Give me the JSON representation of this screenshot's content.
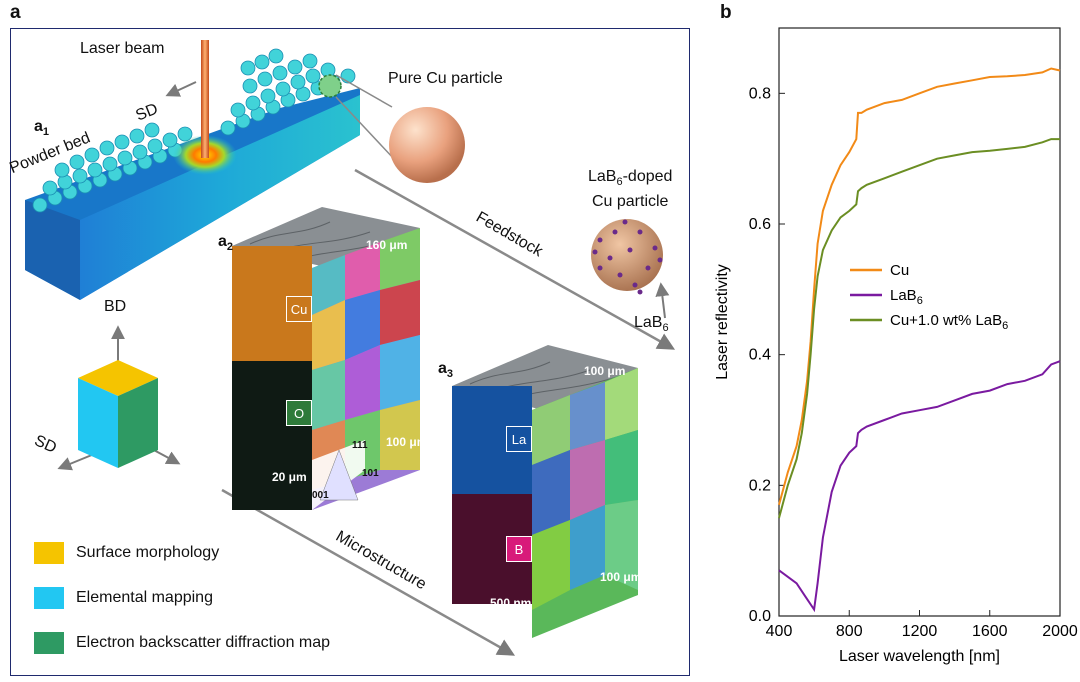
{
  "panel_a": {
    "letter": "a",
    "sub_a1": "a",
    "sub_a1_idx": "1",
    "sub_a2": "a",
    "sub_a2_idx": "2",
    "sub_a3": "a",
    "sub_a3_idx": "3",
    "laser_beam": "Laser beam",
    "sd_top": "SD",
    "powder_bed": "Powder bed",
    "pure_cu": "Pure Cu particle",
    "lab6_doped_1": "LaB",
    "lab6_doped_sub": "6",
    "lab6_doped_2": "-doped",
    "lab6_doped_3": "Cu particle",
    "lab6_label": "LaB",
    "lab6_label_sub": "6",
    "feedstock": "Feedstock",
    "microstructure": "Microstructure",
    "bd": "BD",
    "sd_axis": "SD",
    "tile_cu": "Cu",
    "tile_o": "O",
    "tile_la": "La",
    "tile_b": "B",
    "scale_160um": "160 μm",
    "scale_20um": "20 μm",
    "scale_100um_a2": "100 μm",
    "scale_100um_top": "100 μm",
    "scale_500nm": "500 nm",
    "scale_100um_a3": "100 μm",
    "ipf_111": "111",
    "ipf_001": "001",
    "ipf_101": "101",
    "legend": [
      {
        "label": "Surface morphology",
        "color": "#f5c400"
      },
      {
        "label": "Elemental mapping",
        "color": "#22c7f2"
      },
      {
        "label": "Electron backscatter diffraction map",
        "color": "#2e9a63"
      }
    ]
  },
  "chart_data": {
    "type": "line",
    "panel_letter": "b",
    "xlabel": "Laser wavelength [nm]",
    "ylabel": "Laser reflectivity",
    "xlim": [
      400,
      2000
    ],
    "ylim": [
      0.0,
      0.9
    ],
    "xticks": [
      400,
      800,
      1200,
      1600,
      2000
    ],
    "yticks": [
      0.0,
      0.2,
      0.4,
      0.6,
      0.8
    ],
    "ytick_labels": [
      "0.0",
      "0.2",
      "0.4",
      "0.6",
      "0.8"
    ],
    "legend_position": "middle-right",
    "series": [
      {
        "name": "Cu",
        "color": "#f28a17",
        "x": [
          400,
          450,
          500,
          530,
          560,
          580,
          600,
          620,
          650,
          700,
          750,
          800,
          840,
          850,
          870,
          900,
          1000,
          1100,
          1200,
          1300,
          1400,
          1500,
          1600,
          1700,
          1800,
          1900,
          1950,
          2000
        ],
        "y": [
          0.17,
          0.22,
          0.26,
          0.3,
          0.36,
          0.42,
          0.5,
          0.57,
          0.62,
          0.66,
          0.69,
          0.71,
          0.73,
          0.77,
          0.77,
          0.775,
          0.785,
          0.79,
          0.8,
          0.81,
          0.815,
          0.82,
          0.825,
          0.826,
          0.828,
          0.832,
          0.838,
          0.835
        ]
      },
      {
        "name": "LaB",
        "name_sub": "6",
        "color": "#7a1aa0",
        "x": [
          400,
          450,
          500,
          550,
          600,
          620,
          650,
          700,
          750,
          800,
          840,
          850,
          870,
          900,
          1000,
          1100,
          1200,
          1300,
          1400,
          1500,
          1600,
          1700,
          1800,
          1900,
          1950,
          2000
        ],
        "y": [
          0.07,
          0.06,
          0.05,
          0.03,
          0.01,
          0.05,
          0.12,
          0.19,
          0.23,
          0.25,
          0.26,
          0.28,
          0.285,
          0.29,
          0.3,
          0.31,
          0.315,
          0.32,
          0.33,
          0.34,
          0.345,
          0.355,
          0.36,
          0.37,
          0.385,
          0.39
        ]
      },
      {
        "name": "Cu+1.0 wt% LaB",
        "name_sub": "6",
        "color": "#6b8e23",
        "x": [
          400,
          450,
          500,
          530,
          560,
          580,
          600,
          620,
          650,
          700,
          750,
          800,
          840,
          850,
          870,
          900,
          1000,
          1100,
          1200,
          1300,
          1400,
          1500,
          1600,
          1700,
          1800,
          1900,
          1950,
          2000
        ],
        "y": [
          0.15,
          0.2,
          0.24,
          0.28,
          0.34,
          0.4,
          0.47,
          0.52,
          0.56,
          0.59,
          0.61,
          0.62,
          0.63,
          0.65,
          0.655,
          0.66,
          0.67,
          0.68,
          0.69,
          0.7,
          0.705,
          0.71,
          0.712,
          0.715,
          0.718,
          0.725,
          0.73,
          0.73
        ]
      }
    ]
  }
}
